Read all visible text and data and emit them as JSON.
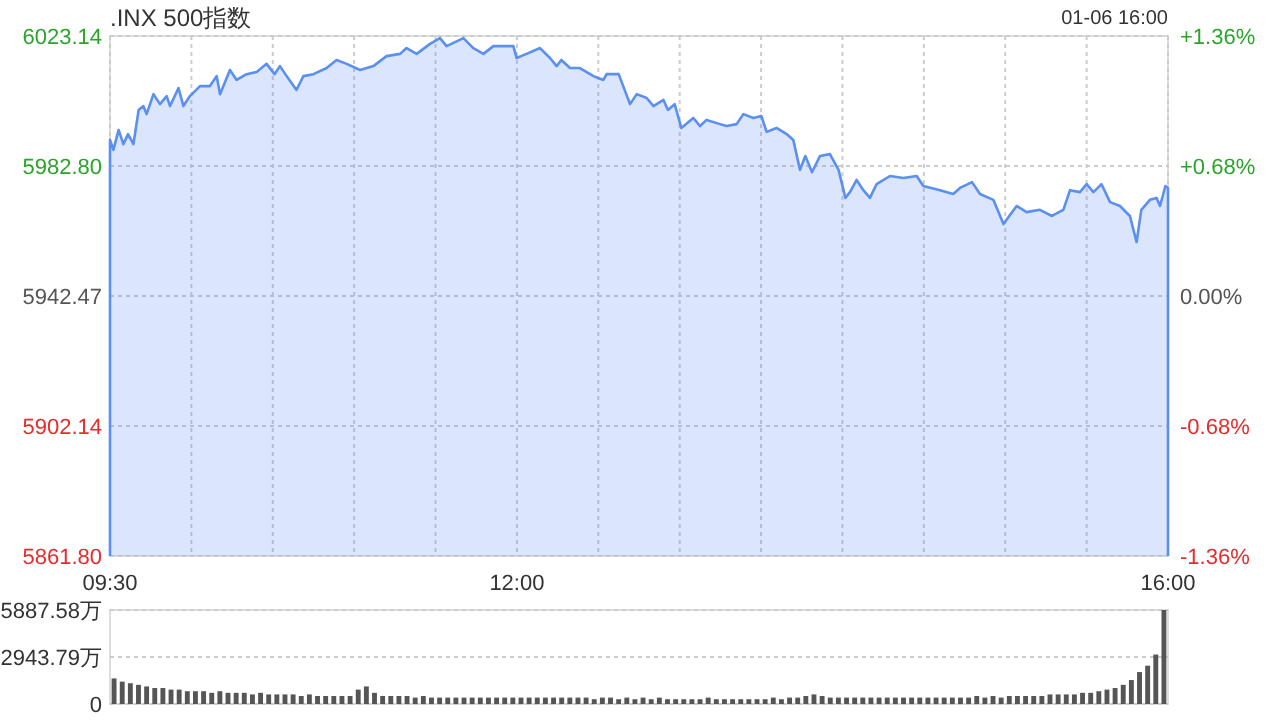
{
  "chart_data": [
    {
      "type": "area",
      "title": ".INX 500指数",
      "annotations": [
        "01-06 16:00"
      ],
      "color": "#5b8ff0",
      "grid": true,
      "marker": "none",
      "x": [
        9.5,
        9.521,
        9.553,
        9.582,
        9.611,
        9.644,
        9.676,
        9.705,
        9.725,
        9.767,
        9.807,
        9.848,
        9.869,
        9.921,
        9.951,
        9.991,
        10.053,
        10.114,
        10.155,
        10.176,
        10.237,
        10.278,
        10.339,
        10.401,
        10.462,
        10.511,
        10.544,
        10.585,
        10.646,
        10.688,
        10.75,
        10.831,
        10.892,
        10.954,
        11.036,
        11.118,
        11.199,
        11.282,
        11.322,
        11.384,
        11.466,
        11.527,
        11.568,
        11.671,
        11.732,
        11.794,
        11.855,
        11.937,
        11.978,
        11.998,
        12.059,
        12.142,
        12.203,
        12.244,
        12.273,
        12.326,
        12.387,
        12.47,
        12.531,
        12.551,
        12.625,
        12.695,
        12.736,
        12.797,
        12.839,
        12.9,
        12.928,
        12.969,
        13.01,
        13.084,
        13.125,
        13.165,
        13.248,
        13.288,
        13.35,
        13.391,
        13.453,
        13.502,
        13.534,
        13.595,
        13.657,
        13.698,
        13.739,
        13.772,
        13.813,
        13.862,
        13.923,
        13.976,
        14.018,
        14.046,
        14.087,
        14.128,
        14.169,
        14.21,
        14.292,
        14.374,
        14.456,
        14.497,
        14.599,
        14.681,
        14.722,
        14.796,
        14.845,
        14.927,
        14.989,
        15.07,
        15.131,
        15.213,
        15.287,
        15.357,
        15.398,
        15.459,
        15.5,
        15.542,
        15.591,
        15.644,
        15.705,
        15.766,
        15.807,
        15.836,
        15.889,
        15.93,
        15.951,
        15.984,
        16.0
      ],
      "values": [
        5990.9,
        5987.8,
        5994.0,
        5989.6,
        5992.7,
        5989.6,
        6000.2,
        6001.4,
        5998.9,
        6005.1,
        6002.0,
        6004.5,
        6001.4,
        6007.0,
        6001.4,
        6004.5,
        6007.6,
        6007.6,
        6010.7,
        6005.1,
        6012.6,
        6009.5,
        6011.3,
        6012.0,
        6014.5,
        6011.3,
        6013.8,
        6010.7,
        6006.4,
        6010.7,
        6011.3,
        6013.2,
        6015.7,
        6014.5,
        6012.6,
        6013.8,
        6016.9,
        6017.6,
        6019.4,
        6017.6,
        6020.7,
        6022.5,
        6020.0,
        6022.5,
        6019.4,
        6017.6,
        6020.0,
        6020.0,
        6020.0,
        6016.3,
        6017.6,
        6019.4,
        6016.3,
        6013.8,
        6015.7,
        6013.2,
        6013.2,
        6010.7,
        6009.5,
        6011.3,
        6011.3,
        6002.0,
        6005.1,
        6003.9,
        6001.4,
        6003.3,
        6000.2,
        6002.0,
        5994.6,
        5997.7,
        5995.2,
        5997.1,
        5995.8,
        5995.2,
        5995.8,
        5998.9,
        5997.7,
        5998.3,
        5993.4,
        5994.6,
        5992.7,
        5990.9,
        5981.6,
        5985.9,
        5980.9,
        5985.9,
        5986.5,
        5981.6,
        5972.9,
        5974.7,
        5978.5,
        5975.3,
        5972.9,
        5977.2,
        5979.7,
        5979.1,
        5979.7,
        5976.6,
        5975.3,
        5974.1,
        5976.0,
        5977.8,
        5974.1,
        5972.3,
        5964.8,
        5970.4,
        5968.5,
        5969.2,
        5967.3,
        5969.2,
        5975.3,
        5974.7,
        5977.2,
        5974.7,
        5977.2,
        5971.6,
        5970.4,
        5967.3,
        5959.2,
        5969.2,
        5972.3,
        5972.9,
        5970.4,
        5976.6,
        5976.0
      ],
      "xlim": [
        9.5,
        16
      ],
      "xticks": [
        {
          "value": 9.5,
          "label": "09:30"
        },
        {
          "value": 10,
          "label": null
        },
        {
          "value": 10.5,
          "label": null
        },
        {
          "value": 11,
          "label": null
        },
        {
          "value": 11.5,
          "label": null
        },
        {
          "value": 12,
          "label": "12:00"
        },
        {
          "value": 12.5,
          "label": null
        },
        {
          "value": 13,
          "label": null
        },
        {
          "value": 13.5,
          "label": null
        },
        {
          "value": 14,
          "label": null
        },
        {
          "value": 14.5,
          "label": null
        },
        {
          "value": 15,
          "label": null
        },
        {
          "value": 15.5,
          "label": null
        },
        {
          "value": 16,
          "label": "16:00"
        }
      ],
      "ylim": [
        5861.8,
        6023.14
      ],
      "yticks": [
        {
          "value": 5861.8,
          "label": "5861.80"
        },
        5902.14,
        5942.47,
        {
          "value": 5982.8,
          "label": "5982.80"
        },
        6023.14
      ],
      "y2lim": [
        -1.36,
        1.36
      ],
      "y2ticks": [
        {
          "value": -1.36,
          "label": "-1.36%"
        },
        {
          "value": -0.68,
          "label": "-0.68%"
        },
        {
          "value": 0,
          "label": "0.00%"
        },
        {
          "value": 0.68,
          "label": "+0.68%"
        },
        {
          "value": 1.36,
          "label": "+1.36%"
        }
      ]
    },
    {
      "type": "bar",
      "color": "#555555",
      "grid": "y",
      "tick_labels": "y",
      "categories": [
        null,
        null,
        null,
        null,
        null,
        null,
        null,
        null,
        null,
        null,
        null,
        null,
        null,
        null,
        null,
        null,
        null,
        null,
        null,
        null,
        null,
        null,
        null,
        null,
        null,
        null,
        null,
        null,
        null,
        null,
        null,
        null,
        null,
        null,
        null,
        null,
        null,
        null,
        null,
        null,
        null,
        null,
        null,
        null,
        null,
        null,
        null,
        null,
        null,
        null,
        null,
        null,
        null,
        null,
        null,
        null,
        null,
        null,
        null,
        null,
        null,
        null,
        null,
        null,
        null,
        null,
        null,
        null,
        null,
        null,
        null,
        null,
        null,
        null,
        null,
        null,
        null,
        null,
        null,
        null,
        null,
        null,
        null,
        null,
        null,
        null,
        null,
        null,
        null,
        null,
        null,
        null,
        null,
        null,
        null,
        null,
        null,
        null,
        null,
        null,
        null,
        null,
        null,
        null,
        null,
        null,
        null,
        null,
        null,
        null,
        null,
        null,
        null,
        null,
        null,
        null,
        null,
        null,
        null,
        null,
        null,
        null,
        null,
        null,
        null,
        null,
        null,
        null,
        null,
        null
      ],
      "values": [
        1600,
        1400,
        1300,
        1200,
        1100,
        1000,
        1000,
        900,
        900,
        800,
        800,
        800,
        700,
        800,
        700,
        700,
        700,
        600,
        700,
        600,
        600,
        600,
        600,
        500,
        600,
        500,
        500,
        500,
        500,
        500,
        900,
        1100,
        700,
        500,
        500,
        500,
        500,
        400,
        500,
        400,
        400,
        400,
        400,
        400,
        400,
        400,
        400,
        400,
        400,
        400,
        400,
        400,
        400,
        400,
        400,
        400,
        400,
        400,
        400,
        300,
        400,
        400,
        300,
        400,
        300,
        400,
        300,
        400,
        300,
        300,
        300,
        300,
        300,
        400,
        300,
        300,
        300,
        300,
        300,
        300,
        300,
        400,
        300,
        400,
        400,
        500,
        600,
        500,
        400,
        400,
        400,
        400,
        400,
        400,
        400,
        400,
        400,
        400,
        400,
        400,
        400,
        400,
        400,
        400,
        400,
        400,
        500,
        400,
        500,
        400,
        500,
        500,
        500,
        500,
        500,
        600,
        600,
        600,
        600,
        700,
        700,
        800,
        900,
        1000,
        1200,
        1500,
        2000,
        2400,
        3100,
        5887.58
      ],
      "ylim": [
        0,
        5887.58
      ],
      "yticks": [
        0,
        {
          "value": 2943.79,
          "label": "2943.79万"
        },
        {
          "value": 5887.58,
          "label": "5887.58万"
        }
      ]
    }
  ]
}
